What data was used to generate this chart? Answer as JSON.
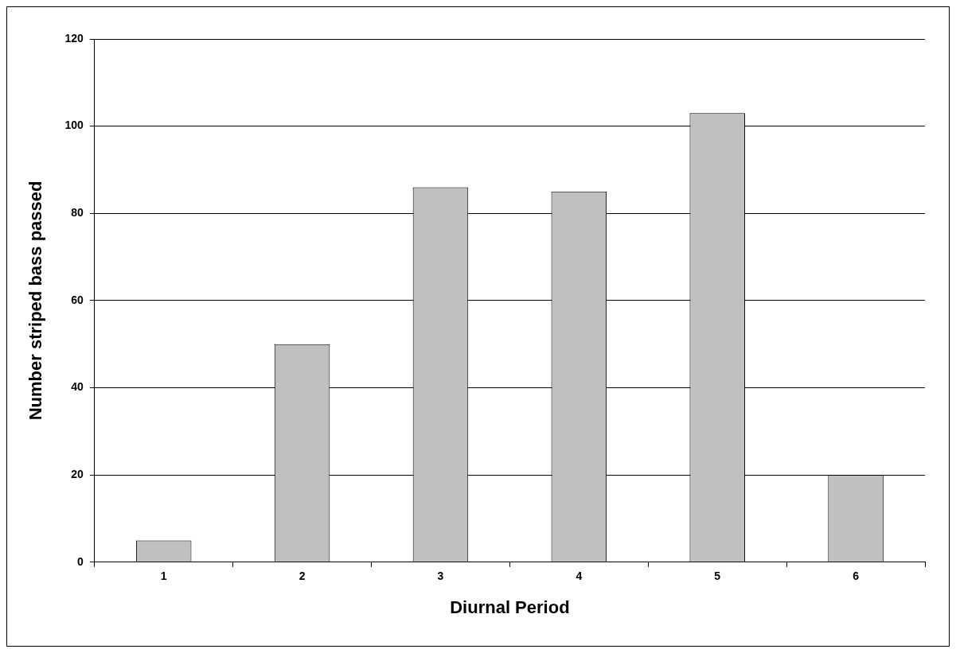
{
  "chart_data": {
    "type": "bar",
    "xlabel": "Diurnal Period",
    "ylabel": "Number striped bass passed",
    "categories": [
      "1",
      "2",
      "3",
      "4",
      "5",
      "6"
    ],
    "values": [
      5,
      50,
      86,
      85,
      103,
      20
    ],
    "color": "#c0c0c0",
    "ylim": [
      0,
      120
    ],
    "yticks": [
      0,
      20,
      40,
      60,
      80,
      100,
      120
    ],
    "grid": "y",
    "legend": false
  }
}
